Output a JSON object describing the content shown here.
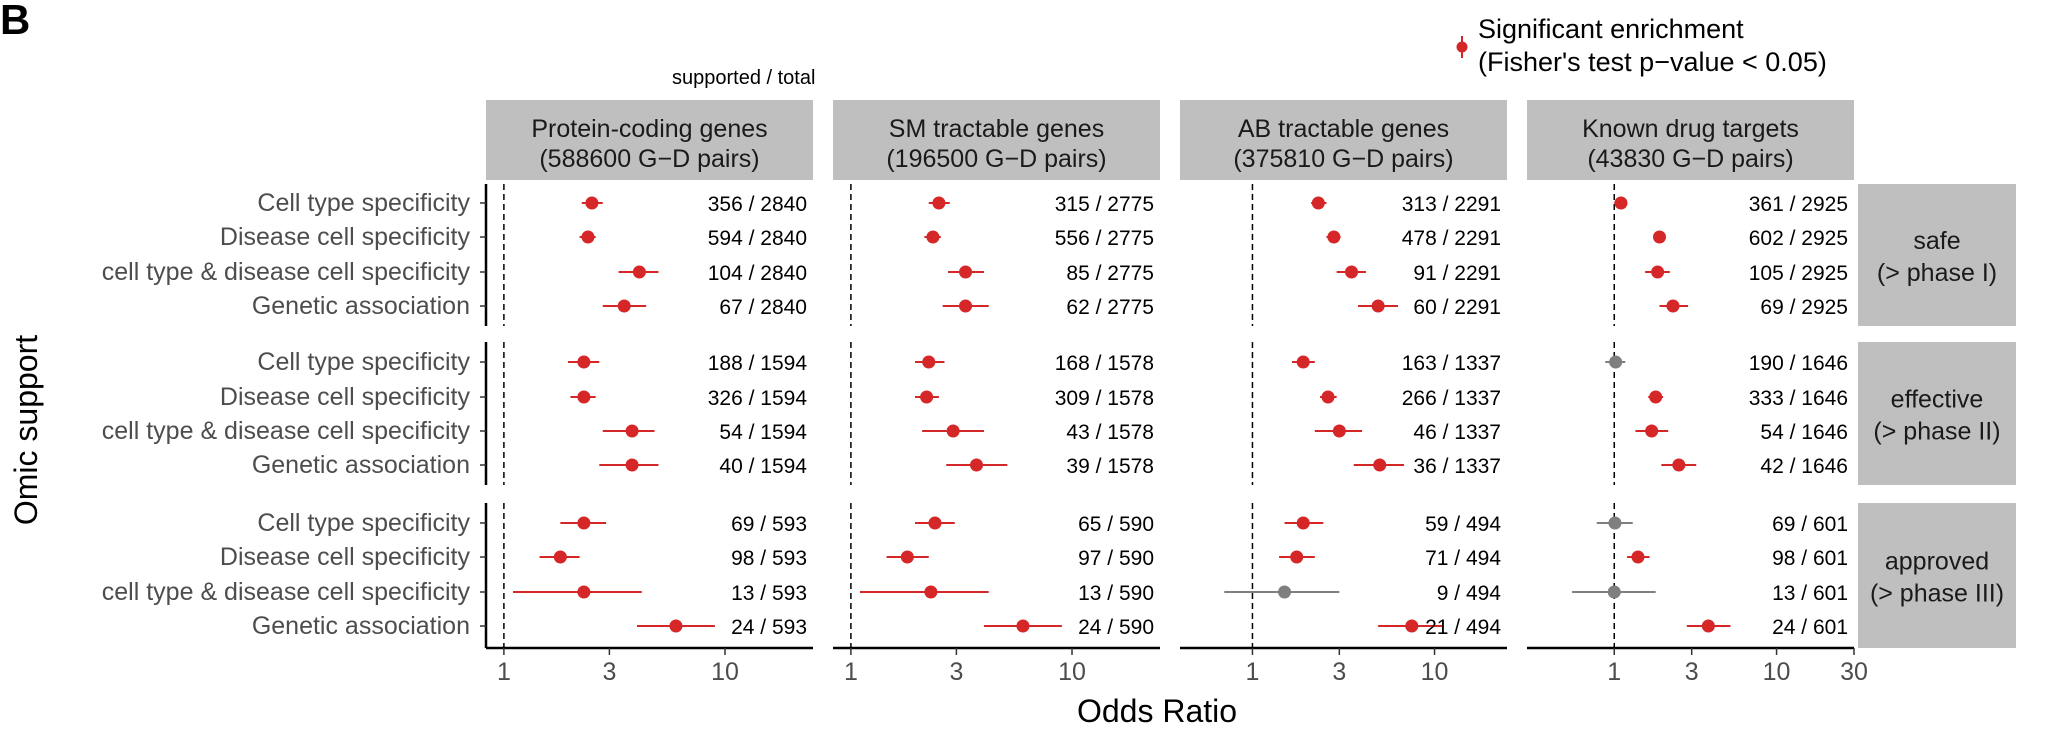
{
  "panel_tag": "B",
  "y_axis_title": "Omic support",
  "x_axis_title": "Odds Ratio",
  "count_header": "supported / total",
  "legend": {
    "line1": "Significant enrichment",
    "line2": "(Fisher's test p−value < 0.05)",
    "color": "#d62728"
  },
  "colors": {
    "significant": "#d62728",
    "not_significant": "#7f7f7f",
    "strip": "#bfbfbf"
  },
  "chart_data": {
    "type": "scatter",
    "x_scale": "log10",
    "reference_line_x": 1,
    "xlabel": "Odds Ratio",
    "ylabel": "Omic support",
    "grid": false,
    "legend_placement": "top-right",
    "rows": [
      "Cell type specificity",
      "Disease cell specificity",
      "cell type & disease cell specificity",
      "Genetic association"
    ],
    "columns": [
      {
        "label_line1": "Protein-coding genes",
        "label_line2": "(588600 G−D pairs)",
        "ticks": [
          "1",
          "3",
          "10"
        ],
        "tick_values": [
          1,
          3,
          10
        ],
        "xlim": [
          0.83,
          25
        ]
      },
      {
        "label_line1": "SM tractable genes",
        "label_line2": "(196500 G−D pairs)",
        "ticks": [
          "1",
          "3",
          "10"
        ],
        "tick_values": [
          1,
          3,
          10
        ],
        "xlim": [
          0.83,
          25
        ]
      },
      {
        "label_line1": "AB tractable genes",
        "label_line2": "(375810 G−D pairs)",
        "ticks": [
          "1",
          "3",
          "10"
        ],
        "tick_values": [
          1,
          3,
          10
        ],
        "xlim": [
          0.4,
          25
        ]
      },
      {
        "label_line1": "Known drug targets",
        "label_line2": "(43830 G−D pairs)",
        "ticks": [
          "1",
          "3",
          "10",
          "30"
        ],
        "tick_values": [
          1,
          3,
          10,
          30
        ],
        "xlim": [
          0.29,
          30
        ]
      }
    ],
    "phases": [
      {
        "label_line1": "safe",
        "label_line2": "(> phase I)"
      },
      {
        "label_line1": "effective",
        "label_line2": "(> phase II)"
      },
      {
        "label_line1": "approved",
        "label_line2": "(> phase III)"
      }
    ],
    "points": [
      [
        [
          {
            "or": 2.5,
            "lo": 2.25,
            "hi": 2.8,
            "count": "356 / 2840",
            "significant": true
          },
          {
            "or": 2.4,
            "lo": 2.2,
            "hi": 2.6,
            "count": "594 / 2840",
            "significant": true
          },
          {
            "or": 4.1,
            "lo": 3.3,
            "hi": 5.0,
            "count": "104 / 2840",
            "significant": true
          },
          {
            "or": 3.5,
            "lo": 2.8,
            "hi": 4.4,
            "count": "67 / 2840",
            "significant": true
          }
        ],
        [
          {
            "or": 2.3,
            "lo": 1.95,
            "hi": 2.7,
            "count": "188 / 1594",
            "significant": true
          },
          {
            "or": 2.3,
            "lo": 2.0,
            "hi": 2.6,
            "count": "326 / 1594",
            "significant": true
          },
          {
            "or": 3.8,
            "lo": 2.8,
            "hi": 4.8,
            "count": "54 / 1594",
            "significant": true
          },
          {
            "or": 3.8,
            "lo": 2.7,
            "hi": 5.0,
            "count": "40 / 1594",
            "significant": true
          }
        ],
        [
          {
            "or": 2.3,
            "lo": 1.8,
            "hi": 2.9,
            "count": "69 / 593",
            "significant": true
          },
          {
            "or": 1.8,
            "lo": 1.45,
            "hi": 2.2,
            "count": "98 / 593",
            "significant": true
          },
          {
            "or": 2.3,
            "lo": 1.1,
            "hi": 4.2,
            "count": "13 / 593",
            "significant": true
          },
          {
            "or": 6.0,
            "lo": 4.0,
            "hi": 9.0,
            "count": "24 / 593",
            "significant": true
          }
        ]
      ],
      [
        [
          {
            "or": 2.5,
            "lo": 2.25,
            "hi": 2.8,
            "count": "315 / 2775",
            "significant": true
          },
          {
            "or": 2.35,
            "lo": 2.15,
            "hi": 2.55,
            "count": "556 / 2775",
            "significant": true
          },
          {
            "or": 3.3,
            "lo": 2.75,
            "hi": 4.0,
            "count": "85 / 2775",
            "significant": true
          },
          {
            "or": 3.3,
            "lo": 2.6,
            "hi": 4.2,
            "count": "62 / 2775",
            "significant": true
          }
        ],
        [
          {
            "or": 2.25,
            "lo": 1.95,
            "hi": 2.65,
            "count": "168 / 1578",
            "significant": true
          },
          {
            "or": 2.2,
            "lo": 1.95,
            "hi": 2.5,
            "count": "309 / 1578",
            "significant": true
          },
          {
            "or": 2.9,
            "lo": 2.1,
            "hi": 4.0,
            "count": "43 / 1578",
            "significant": true
          },
          {
            "or": 3.7,
            "lo": 2.7,
            "hi": 5.1,
            "count": "39 / 1578",
            "significant": true
          }
        ],
        [
          {
            "or": 2.4,
            "lo": 1.95,
            "hi": 2.95,
            "count": "65 / 590",
            "significant": true
          },
          {
            "or": 1.8,
            "lo": 1.45,
            "hi": 2.25,
            "count": "97 / 590",
            "significant": true
          },
          {
            "or": 2.3,
            "lo": 1.1,
            "hi": 4.2,
            "count": "13 / 590",
            "significant": true
          },
          {
            "or": 6.0,
            "lo": 4.0,
            "hi": 9.0,
            "count": "24 / 590",
            "significant": true
          }
        ]
      ],
      [
        [
          {
            "or": 2.3,
            "lo": 2.1,
            "hi": 2.55,
            "count": "313 / 2291",
            "significant": true
          },
          {
            "or": 2.8,
            "lo": 2.55,
            "hi": 3.05,
            "count": "478 / 2291",
            "significant": true
          },
          {
            "or": 3.5,
            "lo": 2.9,
            "hi": 4.2,
            "count": "91 / 2291",
            "significant": true
          },
          {
            "or": 4.9,
            "lo": 3.8,
            "hi": 6.3,
            "count": "60 / 2291",
            "significant": true
          }
        ],
        [
          {
            "or": 1.9,
            "lo": 1.65,
            "hi": 2.2,
            "count": "163 / 1337",
            "significant": true
          },
          {
            "or": 2.6,
            "lo": 2.35,
            "hi": 2.9,
            "count": "266 / 1337",
            "significant": true
          },
          {
            "or": 3.0,
            "lo": 2.2,
            "hi": 4.0,
            "count": "46 / 1337",
            "significant": true
          },
          {
            "or": 5.0,
            "lo": 3.6,
            "hi": 6.8,
            "count": "36 / 1337",
            "significant": true
          }
        ],
        [
          {
            "or": 1.9,
            "lo": 1.5,
            "hi": 2.45,
            "count": "59 / 494",
            "significant": true
          },
          {
            "or": 1.75,
            "lo": 1.4,
            "hi": 2.2,
            "count": "71 / 494",
            "significant": true
          },
          {
            "or": 1.5,
            "lo": 0.7,
            "hi": 3.0,
            "count": "9 / 494",
            "significant": false
          },
          {
            "or": 7.5,
            "lo": 4.9,
            "hi": 11.0,
            "count": "21 / 494",
            "significant": true
          }
        ]
      ],
      [
        [
          {
            "or": 1.1,
            "lo": 1.0,
            "hi": 1.2,
            "count": "361 / 2925",
            "significant": true
          },
          {
            "or": 1.9,
            "lo": 1.78,
            "hi": 2.03,
            "count": "602 / 2925",
            "significant": true
          },
          {
            "or": 1.85,
            "lo": 1.55,
            "hi": 2.2,
            "count": "105 / 2925",
            "significant": true
          },
          {
            "or": 2.3,
            "lo": 1.9,
            "hi": 2.85,
            "count": "69 / 2925",
            "significant": true
          }
        ],
        [
          {
            "or": 1.02,
            "lo": 0.88,
            "hi": 1.17,
            "count": "190 / 1646",
            "significant": false
          },
          {
            "or": 1.8,
            "lo": 1.62,
            "hi": 2.0,
            "count": "333 / 1646",
            "significant": true
          },
          {
            "or": 1.7,
            "lo": 1.35,
            "hi": 2.15,
            "count": "54 / 1646",
            "significant": true
          },
          {
            "or": 2.5,
            "lo": 1.95,
            "hi": 3.2,
            "count": "42 / 1646",
            "significant": true
          }
        ],
        [
          {
            "or": 1.01,
            "lo": 0.78,
            "hi": 1.3,
            "count": "69 / 601",
            "significant": false
          },
          {
            "or": 1.4,
            "lo": 1.2,
            "hi": 1.65,
            "count": "98 / 601",
            "significant": true
          },
          {
            "or": 1.0,
            "lo": 0.55,
            "hi": 1.8,
            "count": "13 / 601",
            "significant": false
          },
          {
            "or": 3.8,
            "lo": 2.8,
            "hi": 5.2,
            "count": "24 / 601",
            "significant": true
          }
        ]
      ]
    ]
  }
}
